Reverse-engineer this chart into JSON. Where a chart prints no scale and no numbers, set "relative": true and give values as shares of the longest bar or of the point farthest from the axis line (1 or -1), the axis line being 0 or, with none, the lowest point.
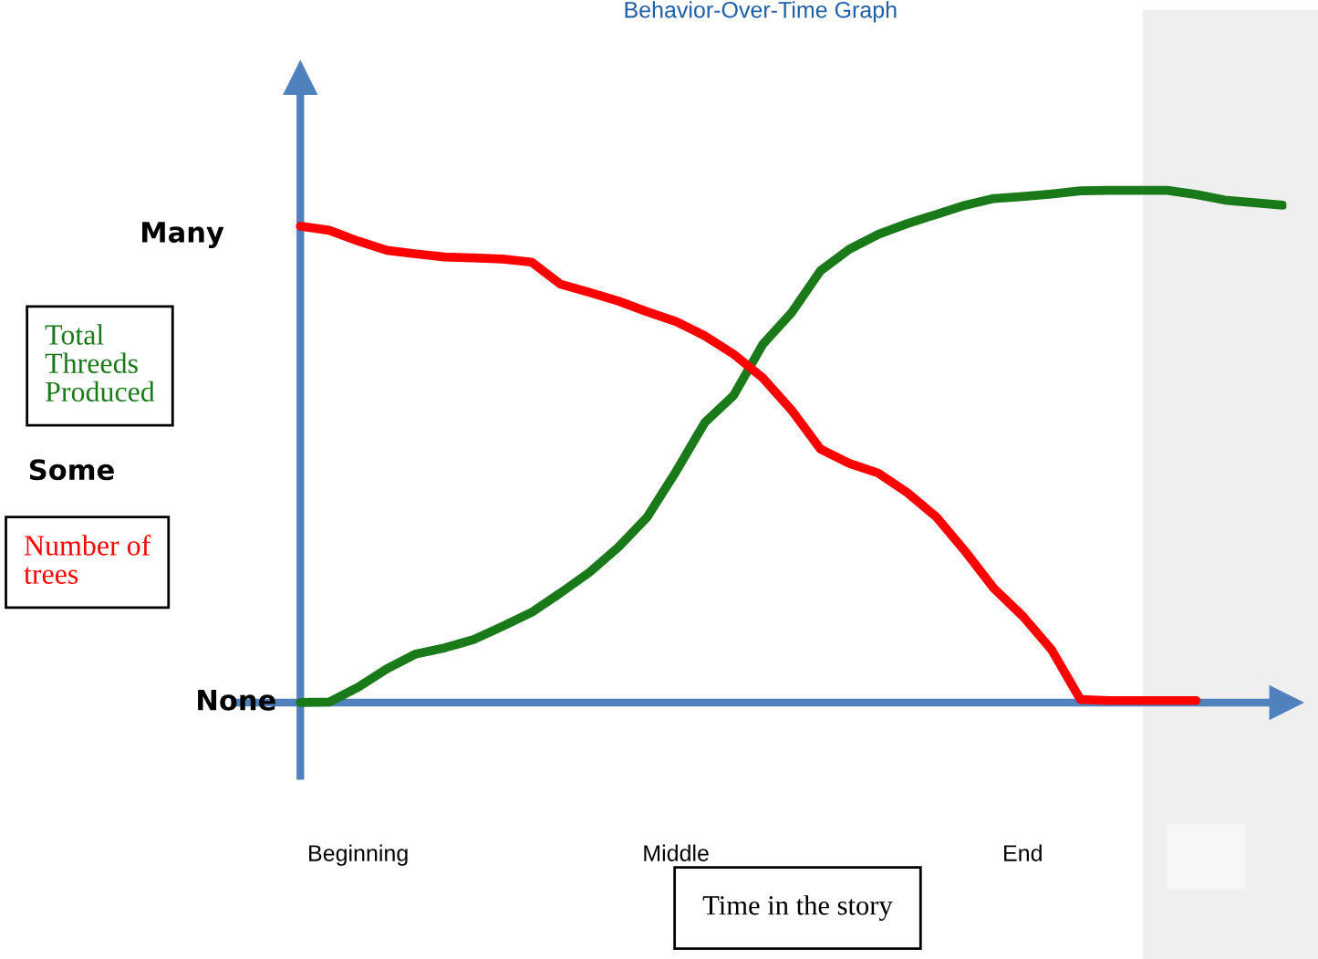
{
  "chart_data": {
    "type": "line",
    "title": "Behavior-Over-Time Graph",
    "xlabel": "Time in the story",
    "relative": true,
    "categories": [
      null,
      null,
      "Beginning",
      null,
      null,
      null,
      null,
      null,
      null,
      null,
      null,
      null,
      null,
      "Middle",
      null,
      null,
      null,
      null,
      null,
      null,
      null,
      null,
      null,
      null,
      null,
      "End",
      null,
      null,
      null,
      null,
      null,
      null,
      null,
      null,
      null
    ],
    "annotations": [
      "None",
      "Some",
      "Many"
    ],
    "line_style": "solid",
    "series": [
      {
        "name": "Total Threeds Produced",
        "color": "#1a7a1a",
        "values": [
          0,
          0.001,
          0.03,
          0.066,
          0.095,
          0.107,
          0.123,
          0.149,
          0.176,
          0.214,
          0.254,
          0.303,
          0.362,
          0.451,
          0.547,
          0.6,
          0.699,
          0.761,
          0.843,
          0.885,
          0.914,
          0.935,
          0.953,
          0.971,
          0.984,
          0.988,
          0.993,
          0.999,
          1,
          1,
          1,
          0.992,
          0.981,
          0.976,
          0.971
        ]
      },
      {
        "name": "Number of trees",
        "color": "#ff0000",
        "values": [
          0.93,
          0.922,
          0.901,
          0.883,
          0.876,
          0.87,
          0.868,
          0.866,
          0.86,
          0.817,
          0.801,
          0.784,
          0.763,
          0.744,
          0.716,
          0.68,
          0.634,
          0.571,
          0.495,
          0.467,
          0.448,
          0.41,
          0.363,
          0.296,
          0.223,
          0.169,
          0.103,
          0.006,
          0.004,
          0.004,
          0.004,
          0.004,
          null,
          null,
          null
        ]
      }
    ]
  }
}
